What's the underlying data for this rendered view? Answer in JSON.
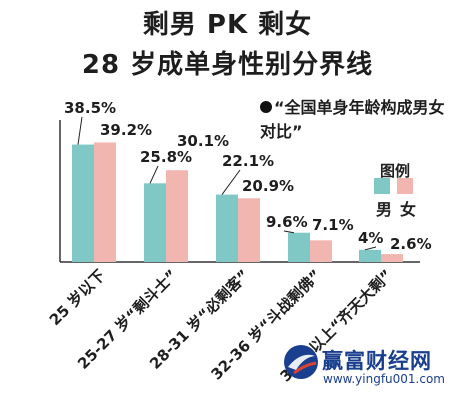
{
  "title": "剩男 PK 剩女",
  "subtitle": "28 岁成单身性别分界线",
  "source_note": "“全国单身年龄构成男女对比”",
  "legend": {
    "title": "图例",
    "male_label": "男",
    "female_label": "女"
  },
  "colors": {
    "male": "#80c8c6",
    "female": "#f1b6b0",
    "axis": "#333333"
  },
  "chart_data": {
    "type": "bar",
    "categories": [
      "25 岁以下",
      "25-27 岁“剩斗士”",
      "28-31 岁“必剩客”",
      "32-36 岁“斗战剩佛”",
      "36 岁以上“齐天大剩”"
    ],
    "series": [
      {
        "name": "男",
        "values": [
          38.5,
          25.8,
          22.1,
          9.6,
          4
        ],
        "labels": [
          "38.5%",
          "25.8%",
          "22.1%",
          "9.6%",
          "4%"
        ]
      },
      {
        "name": "女",
        "values": [
          39.2,
          30.1,
          20.9,
          7.1,
          2.6
        ],
        "labels": [
          "39.2%",
          "30.1%",
          "20.9%",
          "7.1%",
          "2.6%"
        ]
      }
    ],
    "unit": "%",
    "ylim": [
      0,
      40
    ],
    "grid": false,
    "legend_position": "right"
  },
  "watermark": {
    "name": "赢富财经网",
    "url": "www.yingfu001.com"
  }
}
